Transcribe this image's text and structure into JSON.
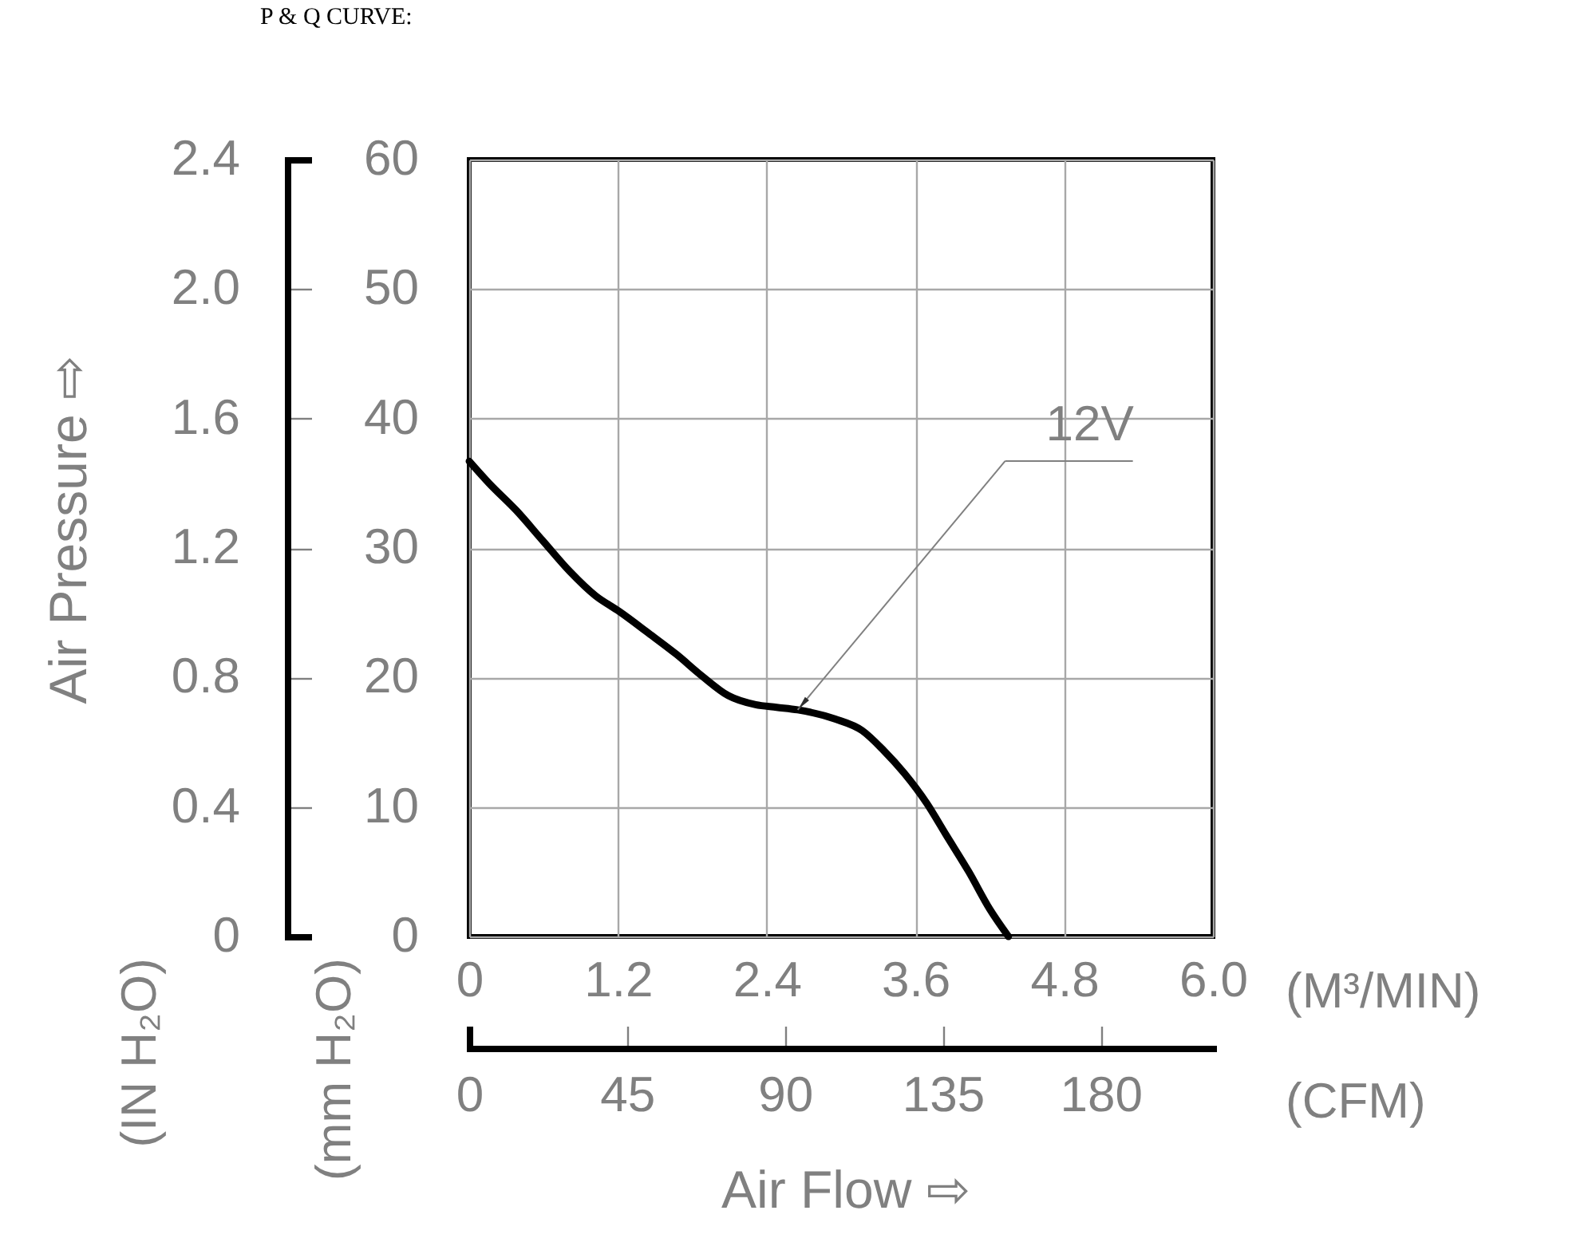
{
  "chart_data": {
    "type": "line",
    "title": "P & Q CURVE:",
    "xlabel": "(M³/MIN)",
    "ylabel": "(mm H₂O)",
    "y2label": "(IN H₂O)",
    "x2label": "(CFM)",
    "annotations": [
      "Air Flow ⇨",
      "Air Pressure ⇨"
    ],
    "x": [
      0,
      0.16,
      0.38,
      0.59,
      0.81,
      1.02,
      1.21,
      1.45,
      1.67,
      1.88,
      2.09,
      2.31,
      2.48,
      2.65,
      2.95,
      3.17,
      3.34,
      3.51,
      3.69,
      3.85,
      4.03,
      4.2,
      4.35
    ],
    "series": [
      {
        "name": "12V",
        "color": "#000000",
        "values": [
          36.7,
          35.0,
          32.9,
          30.6,
          28.2,
          26.3,
          25.1,
          23.4,
          21.8,
          20.1,
          18.6,
          17.9,
          17.7,
          17.5,
          16.8,
          15.9,
          14.4,
          12.6,
          10.3,
          7.8,
          5.0,
          2.1,
          0
        ]
      }
    ],
    "xlim": [
      0,
      6
    ],
    "xticks": [
      0,
      1.2,
      2.4,
      3.6,
      4.8,
      {
        "value": 6,
        "label": "6.0"
      }
    ],
    "ylim": [
      0,
      60
    ],
    "yticks": [
      0,
      10,
      20,
      30,
      40,
      50,
      60
    ],
    "y2lim": [
      0,
      2.4
    ],
    "y2ticks": [
      0,
      0.4,
      0.8,
      1.2,
      1.6,
      {
        "value": 2,
        "label": "2.0"
      },
      2.4
    ],
    "x2lim": [
      0,
      212
    ],
    "x2ticks": [
      0,
      45,
      90,
      135,
      180
    ],
    "grid": true
  }
}
